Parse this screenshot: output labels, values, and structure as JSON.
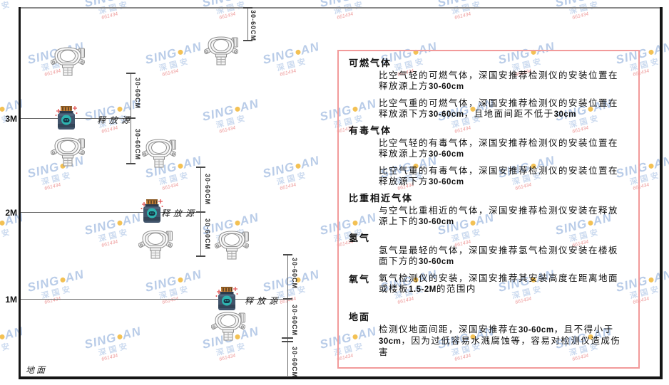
{
  "watermark": {
    "brand_left": "SING",
    "brand_right": "AN",
    "sub": "深国安",
    "code": "661434"
  },
  "diagram": {
    "dim_label": "30-60CM",
    "levels": {
      "l3": "3M",
      "l2": "2M",
      "l1": "1M"
    },
    "ground_label": "地面",
    "source_label": "释放源"
  },
  "panel": {
    "sections": [
      {
        "heading": "可燃气体",
        "paragraphs": [
          "比空气轻的可燃气体，深国安推荐检测仪的安装位置在释放源上方30-60cm",
          "比空气重的可燃气体，深国安推荐检测仪的安装位置在释放源下方30-60cm，且地面间距不低于30cm"
        ]
      },
      {
        "heading": "有毒气体",
        "paragraphs": [
          "比空气轻的有毒气体，深国安推荐检测仪的安装位置在释放源上方30-60cm",
          "比空气重的有毒气体，深国安推荐检测仪的安装位置在释放源下方30-60cm"
        ]
      },
      {
        "heading": "比重相近气体",
        "paragraphs": [
          "与空气比重相近的气体，深国安推荐检测仪安装在释放源上下的30-60cm"
        ]
      },
      {
        "heading": "氢气",
        "paragraphs": [
          "氢气是最轻的气体，深国安推荐氢气检测仪安装在楼板面下方的30-60cm"
        ]
      },
      {
        "heading": "氧气",
        "heading_inline": true,
        "paragraphs": [
          "氧气检测仪的安装，深国安推荐其安装高度在距离地面或楼板1.5-2M的范围内"
        ]
      },
      {
        "heading": "地面",
        "paragraphs": [
          "检测仪地面间距，深国安推荐在30-60cm，且不得小于30cm，因为过低容易水溅腐蚀等，容易对检测仪造成伤害"
        ]
      }
    ]
  },
  "colors": {
    "panel_border": "#f29a9a",
    "watermark_blue": "#80a3d6",
    "watermark_yellow": "#f0b229",
    "sparkle_red": "#e25555",
    "source_body": "#41546b",
    "source_teal": "#2eb4b0",
    "source_cap": "#c57f35",
    "line_gray": "#6b6b6b",
    "frame_black": "#151515"
  }
}
